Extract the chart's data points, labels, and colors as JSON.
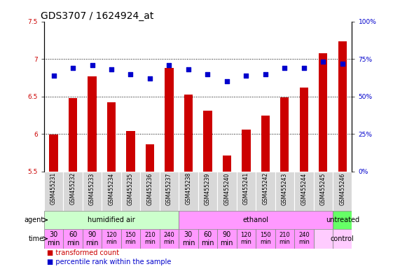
{
  "title": "GDS3707 / 1624924_at",
  "samples": [
    "GSM455231",
    "GSM455232",
    "GSM455233",
    "GSM455234",
    "GSM455235",
    "GSM455236",
    "GSM455237",
    "GSM455238",
    "GSM455239",
    "GSM455240",
    "GSM455241",
    "GSM455242",
    "GSM455243",
    "GSM455244",
    "GSM455245",
    "GSM455246"
  ],
  "bar_values": [
    5.99,
    6.48,
    6.77,
    6.42,
    6.04,
    5.86,
    6.88,
    6.52,
    6.31,
    5.71,
    6.06,
    6.24,
    6.49,
    6.62,
    7.08,
    7.24
  ],
  "dot_values": [
    64,
    69,
    71,
    68,
    65,
    62,
    71,
    68,
    65,
    60,
    64,
    65,
    69,
    69,
    73,
    72
  ],
  "ylim_left": [
    5.5,
    7.5
  ],
  "ylim_right": [
    0,
    100
  ],
  "yticks_left": [
    5.5,
    6.0,
    6.5,
    7.0,
    7.5
  ],
  "yticks_right": [
    0,
    25,
    50,
    75,
    100
  ],
  "ytick_labels_left": [
    "5.5",
    "6",
    "6.5",
    "7",
    "7.5"
  ],
  "ytick_labels_right": [
    "0%",
    "25%",
    "50%",
    "75%",
    "100%"
  ],
  "bar_color": "#cc0000",
  "dot_color": "#0000cc",
  "bar_bottom": 5.5,
  "agent_groups": [
    {
      "label": "humidified air",
      "start": 0,
      "end": 7,
      "color": "#ccffcc"
    },
    {
      "label": "ethanol",
      "start": 7,
      "end": 15,
      "color": "#ff99ff"
    },
    {
      "label": "untreated",
      "start": 15,
      "end": 16,
      "color": "#66ff66"
    }
  ],
  "time_labels": [
    "30\nmin",
    "60\nmin",
    "90\nmin",
    "120\nmin",
    "150\nmin",
    "210\nmin",
    "240\nmin",
    "30\nmin",
    "60\nmin",
    "90\nmin",
    "120\nmin",
    "150\nmin",
    "210\nmin",
    "240\nmin",
    "",
    "control"
  ],
  "time_colors": [
    "#ff99ff",
    "#ff99ff",
    "#ff99ff",
    "#ff99ff",
    "#ff99ff",
    "#ff99ff",
    "#ff99ff",
    "#ff99ff",
    "#ff99ff",
    "#ff99ff",
    "#ff99ff",
    "#ff99ff",
    "#ff99ff",
    "#ff99ff",
    "#ffccff",
    "#ffccff"
  ],
  "time_font_sizes": [
    7,
    7,
    7,
    6,
    6,
    6,
    6,
    7,
    7,
    7,
    6,
    6,
    6,
    6,
    7,
    7
  ],
  "label_fontsize": 7,
  "tick_fontsize": 6.5,
  "title_fontsize": 10,
  "grid_yticks": [
    6.0,
    6.5,
    7.0
  ],
  "bg_color": "#ffffff",
  "plot_bg": "#ffffff",
  "legend_color_bar": "#cc0000",
  "legend_color_dot": "#0000cc",
  "legend_label_bar": "transformed count",
  "legend_label_dot": "percentile rank within the sample"
}
